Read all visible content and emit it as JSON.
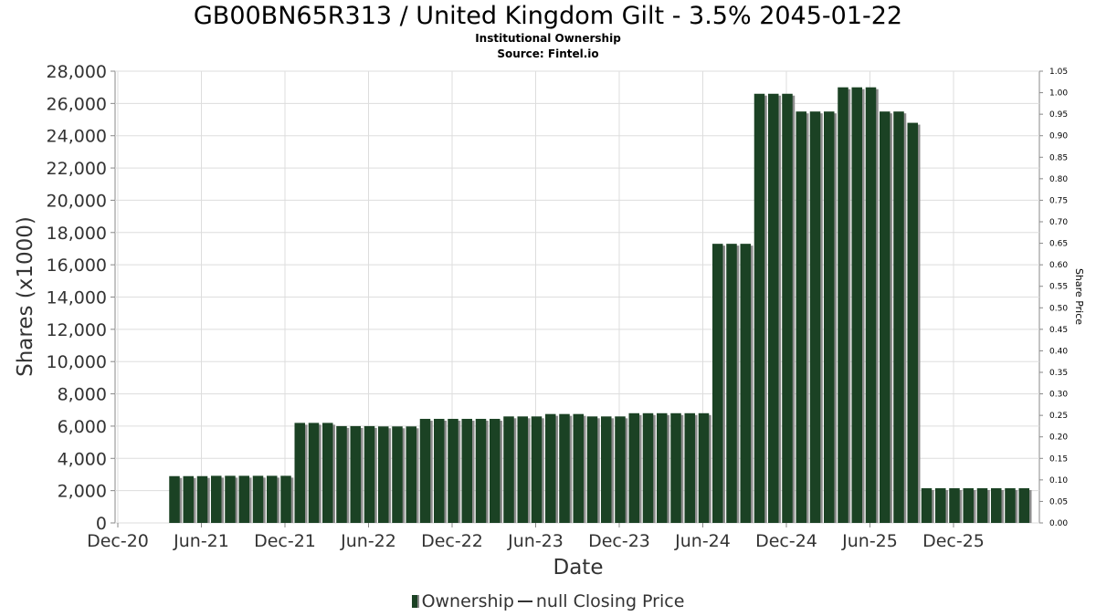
{
  "header": {
    "title": "GB00BN65R313 / United Kingdom Gilt - 3.5% 2045-01-22",
    "subtitle": "Institutional Ownership",
    "source": "Source: Fintel.io"
  },
  "legend": {
    "ownership_label": "Ownership",
    "price_label": "null Closing Price"
  },
  "colors": {
    "bar": "#1b4224",
    "bar_shadow": "#8c8c8c",
    "grid": "#dddddd",
    "axis": "#888888"
  },
  "chart_data": {
    "type": "bar",
    "xlabel": "Date",
    "ylabel": "Shares (x1000)",
    "y2label": "Share Price",
    "ylim": [
      0,
      28000
    ],
    "y2lim": [
      0,
      1.05
    ],
    "grid": true,
    "legend_position": "bottom",
    "x_ticks": [
      "Dec-20",
      "Jun-21",
      "Dec-21",
      "Jun-22",
      "Dec-22",
      "Jun-23",
      "Dec-23",
      "Jun-24",
      "Dec-24",
      "Jun-25",
      "Dec-25"
    ],
    "y_ticks": [
      "0",
      "2,000",
      "4,000",
      "6,000",
      "8,000",
      "10,000",
      "12,000",
      "14,000",
      "16,000",
      "18,000",
      "20,000",
      "22,000",
      "24,000",
      "26,000",
      "28,000"
    ],
    "y2_ticks": [
      "0.00",
      "0.05",
      "0.10",
      "0.15",
      "0.20",
      "0.25",
      "0.30",
      "0.35",
      "0.40",
      "0.45",
      "0.50",
      "0.55",
      "0.60",
      "0.65",
      "0.70",
      "0.75",
      "0.80",
      "0.85",
      "0.90",
      "0.95",
      "1.00",
      "1.05"
    ],
    "series": [
      {
        "name": "Ownership",
        "values": [
          2900,
          2900,
          2900,
          2920,
          2920,
          2920,
          2920,
          2920,
          2920,
          6200,
          6200,
          6200,
          6000,
          6000,
          6000,
          5980,
          5980,
          5980,
          6450,
          6450,
          6450,
          6450,
          6450,
          6450,
          6600,
          6600,
          6600,
          6750,
          6750,
          6750,
          6600,
          6600,
          6600,
          6800,
          6800,
          6800,
          6800,
          6800,
          6800,
          17300,
          17300,
          17300,
          26600,
          26600,
          26600,
          25500,
          25500,
          25500,
          27000,
          27000,
          27000,
          25500,
          25500,
          24800,
          2150,
          2150,
          2150,
          2150,
          2150,
          2150,
          2150,
          2150
        ]
      }
    ]
  }
}
